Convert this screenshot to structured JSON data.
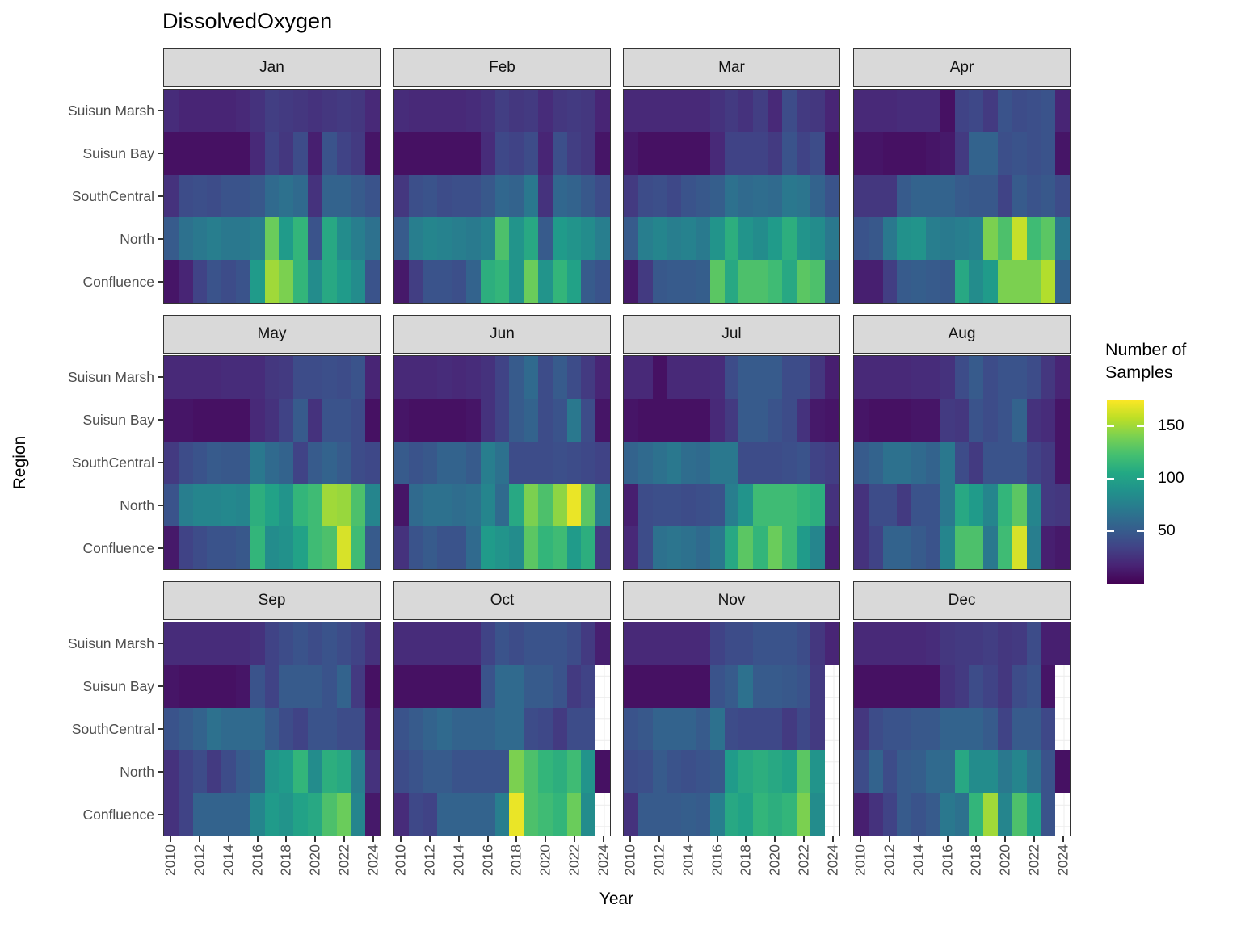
{
  "chart_data": {
    "type": "heatmap",
    "title": "DissolvedOxygen",
    "xlabel": "Year",
    "ylabel": "Region",
    "legend": {
      "title": "Number of Samples",
      "ticks": [
        150,
        100,
        50
      ]
    },
    "colormap": "viridis",
    "value_domain": [
      0,
      175
    ],
    "grid": true,
    "years": [
      2010,
      2011,
      2012,
      2013,
      2014,
      2015,
      2016,
      2017,
      2018,
      2019,
      2020,
      2021,
      2022,
      2023,
      2024
    ],
    "x_tick_labels": [
      "2010",
      "2012",
      "2014",
      "2016",
      "2018",
      "2020",
      "2022",
      "2024"
    ],
    "regions_top_to_bottom": [
      "Suisun Marsh",
      "Suisun Bay",
      "SouthCentral",
      "North",
      "Confluence"
    ],
    "facets": [
      {
        "month": "Jan",
        "values": [
          [
            22,
            18,
            18,
            18,
            18,
            20,
            25,
            32,
            30,
            28,
            25,
            28,
            30,
            28,
            20
          ],
          [
            8,
            8,
            8,
            8,
            8,
            8,
            20,
            35,
            28,
            40,
            15,
            45,
            35,
            30,
            10
          ],
          [
            25,
            40,
            42,
            40,
            45,
            45,
            48,
            60,
            65,
            60,
            25,
            55,
            55,
            50,
            45
          ],
          [
            50,
            65,
            70,
            75,
            70,
            70,
            75,
            135,
            95,
            115,
            45,
            105,
            85,
            75,
            65
          ],
          [
            10,
            18,
            35,
            45,
            40,
            45,
            95,
            150,
            140,
            115,
            85,
            105,
            95,
            85,
            45
          ]
        ]
      },
      {
        "month": "Feb",
        "values": [
          [
            22,
            20,
            20,
            20,
            20,
            22,
            25,
            32,
            28,
            30,
            22,
            28,
            30,
            28,
            18
          ],
          [
            8,
            8,
            8,
            8,
            8,
            8,
            22,
            38,
            35,
            40,
            18,
            42,
            32,
            28,
            10
          ],
          [
            28,
            42,
            45,
            40,
            42,
            42,
            48,
            58,
            55,
            70,
            25,
            58,
            55,
            48,
            40
          ],
          [
            50,
            75,
            80,
            78,
            75,
            72,
            78,
            125,
            90,
            105,
            50,
            95,
            90,
            85,
            75
          ],
          [
            12,
            32,
            45,
            45,
            42,
            55,
            110,
            115,
            90,
            135,
            90,
            115,
            100,
            50,
            45
          ]
        ]
      },
      {
        "month": "Mar",
        "values": [
          [
            20,
            20,
            20,
            20,
            20,
            20,
            25,
            30,
            25,
            32,
            20,
            40,
            30,
            28,
            18
          ],
          [
            12,
            8,
            8,
            8,
            8,
            8,
            20,
            35,
            35,
            35,
            30,
            45,
            35,
            40,
            10
          ],
          [
            30,
            40,
            42,
            38,
            45,
            48,
            52,
            65,
            60,
            62,
            60,
            70,
            68,
            55,
            45
          ],
          [
            50,
            75,
            80,
            75,
            78,
            72,
            90,
            110,
            90,
            85,
            95,
            110,
            90,
            85,
            70
          ],
          [
            12,
            30,
            48,
            50,
            50,
            52,
            130,
            105,
            125,
            125,
            120,
            105,
            130,
            125,
            55
          ]
        ]
      },
      {
        "month": "Apr",
        "values": [
          [
            20,
            20,
            20,
            22,
            22,
            22,
            8,
            35,
            38,
            30,
            45,
            40,
            42,
            45,
            18
          ],
          [
            10,
            10,
            8,
            8,
            8,
            10,
            12,
            30,
            55,
            55,
            42,
            45,
            42,
            45,
            10
          ],
          [
            28,
            28,
            28,
            50,
            55,
            55,
            55,
            50,
            48,
            48,
            35,
            50,
            45,
            48,
            40
          ],
          [
            45,
            48,
            70,
            88,
            90,
            75,
            72,
            75,
            78,
            140,
            125,
            160,
            120,
            130,
            70
          ],
          [
            15,
            15,
            32,
            50,
            52,
            50,
            48,
            105,
            85,
            95,
            140,
            140,
            140,
            155,
            55
          ]
        ]
      },
      {
        "month": "May",
        "values": [
          [
            20,
            20,
            20,
            20,
            22,
            22,
            22,
            28,
            30,
            40,
            40,
            42,
            40,
            45,
            18
          ],
          [
            10,
            10,
            8,
            8,
            8,
            8,
            20,
            25,
            35,
            50,
            25,
            45,
            45,
            40,
            8
          ],
          [
            30,
            40,
            45,
            50,
            48,
            48,
            70,
            60,
            55,
            35,
            50,
            55,
            50,
            40,
            38
          ],
          [
            45,
            75,
            80,
            80,
            82,
            80,
            110,
            100,
            90,
            115,
            120,
            150,
            148,
            125,
            80
          ],
          [
            12,
            35,
            40,
            45,
            45,
            48,
            115,
            85,
            88,
            100,
            120,
            125,
            165,
            120,
            50
          ]
        ]
      },
      {
        "month": "Jun",
        "values": [
          [
            20,
            20,
            20,
            22,
            20,
            22,
            25,
            35,
            50,
            60,
            40,
            50,
            40,
            30,
            18
          ],
          [
            10,
            8,
            8,
            8,
            8,
            10,
            25,
            35,
            50,
            55,
            40,
            45,
            70,
            40,
            10
          ],
          [
            50,
            45,
            48,
            55,
            55,
            50,
            75,
            65,
            40,
            40,
            40,
            42,
            40,
            38,
            35
          ],
          [
            10,
            60,
            65,
            65,
            62,
            65,
            80,
            60,
            105,
            140,
            125,
            145,
            170,
            130,
            75
          ],
          [
            25,
            45,
            50,
            45,
            45,
            60,
            95,
            90,
            85,
            130,
            115,
            120,
            95,
            110,
            30
          ]
        ]
      },
      {
        "month": "Jul",
        "values": [
          [
            20,
            20,
            8,
            20,
            20,
            20,
            22,
            40,
            50,
            50,
            50,
            40,
            40,
            28,
            15
          ],
          [
            10,
            8,
            8,
            8,
            8,
            8,
            20,
            30,
            50,
            50,
            45,
            40,
            25,
            12,
            10
          ],
          [
            55,
            60,
            65,
            70,
            62,
            60,
            70,
            70,
            40,
            40,
            40,
            42,
            45,
            35,
            32
          ],
          [
            15,
            40,
            42,
            42,
            40,
            42,
            45,
            75,
            90,
            120,
            120,
            120,
            115,
            110,
            25
          ],
          [
            20,
            40,
            65,
            68,
            65,
            60,
            70,
            105,
            130,
            115,
            135,
            120,
            95,
            80,
            15
          ]
        ]
      },
      {
        "month": "Aug",
        "values": [
          [
            20,
            20,
            20,
            20,
            22,
            22,
            25,
            40,
            50,
            40,
            45,
            45,
            40,
            28,
            18
          ],
          [
            10,
            8,
            8,
            8,
            10,
            10,
            30,
            28,
            45,
            40,
            45,
            55,
            25,
            22,
            10
          ],
          [
            50,
            55,
            65,
            65,
            60,
            55,
            70,
            40,
            30,
            45,
            45,
            45,
            35,
            30,
            10
          ],
          [
            25,
            40,
            40,
            30,
            45,
            45,
            70,
            105,
            95,
            80,
            115,
            130,
            80,
            30,
            28
          ],
          [
            25,
            35,
            55,
            55,
            50,
            45,
            80,
            125,
            125,
            70,
            120,
            165,
            75,
            15,
            12
          ]
        ]
      },
      {
        "month": "Sep",
        "values": [
          [
            22,
            22,
            22,
            22,
            22,
            22,
            25,
            35,
            40,
            45,
            40,
            45,
            40,
            35,
            25
          ],
          [
            10,
            8,
            8,
            8,
            8,
            10,
            45,
            35,
            50,
            50,
            50,
            45,
            55,
            30,
            8
          ],
          [
            45,
            50,
            55,
            65,
            60,
            60,
            60,
            50,
            40,
            35,
            45,
            45,
            40,
            40,
            15
          ],
          [
            25,
            35,
            40,
            30,
            40,
            50,
            55,
            90,
            95,
            115,
            85,
            110,
            105,
            75,
            25
          ],
          [
            25,
            35,
            55,
            55,
            55,
            55,
            80,
            95,
            90,
            100,
            105,
            125,
            135,
            80,
            12
          ]
        ]
      },
      {
        "month": "Oct",
        "values": [
          [
            22,
            22,
            22,
            22,
            22,
            22,
            35,
            45,
            40,
            45,
            45,
            45,
            40,
            30,
            15
          ],
          [
            8,
            8,
            8,
            8,
            8,
            8,
            45,
            60,
            60,
            50,
            50,
            45,
            30,
            35,
            null
          ],
          [
            45,
            50,
            55,
            60,
            55,
            55,
            55,
            60,
            60,
            40,
            38,
            30,
            40,
            40,
            null
          ],
          [
            40,
            45,
            50,
            50,
            45,
            45,
            45,
            45,
            140,
            125,
            115,
            110,
            120,
            90,
            8
          ],
          [
            22,
            38,
            35,
            55,
            55,
            55,
            55,
            75,
            170,
            125,
            120,
            115,
            135,
            85,
            null
          ]
        ]
      },
      {
        "month": "Nov",
        "values": [
          [
            20,
            20,
            20,
            20,
            20,
            20,
            35,
            40,
            40,
            45,
            45,
            45,
            40,
            28,
            18
          ],
          [
            8,
            8,
            8,
            8,
            8,
            8,
            45,
            50,
            65,
            50,
            50,
            48,
            45,
            30,
            null
          ],
          [
            45,
            48,
            55,
            55,
            55,
            50,
            65,
            40,
            38,
            38,
            38,
            30,
            38,
            30,
            null
          ],
          [
            40,
            42,
            50,
            45,
            42,
            45,
            48,
            95,
            105,
            110,
            105,
            100,
            130,
            90,
            null
          ],
          [
            25,
            50,
            50,
            50,
            52,
            50,
            75,
            105,
            100,
            115,
            110,
            115,
            140,
            85,
            null
          ]
        ]
      },
      {
        "month": "Dec",
        "values": [
          [
            20,
            20,
            20,
            20,
            20,
            22,
            28,
            30,
            30,
            32,
            28,
            30,
            40,
            15,
            15
          ],
          [
            8,
            8,
            8,
            8,
            8,
            8,
            25,
            30,
            40,
            35,
            28,
            40,
            45,
            10,
            null
          ],
          [
            28,
            40,
            45,
            45,
            48,
            48,
            55,
            55,
            55,
            50,
            35,
            50,
            50,
            38,
            null
          ],
          [
            40,
            55,
            40,
            50,
            52,
            60,
            60,
            105,
            85,
            85,
            70,
            80,
            65,
            45,
            8
          ],
          [
            15,
            25,
            35,
            50,
            45,
            50,
            70,
            65,
            115,
            150,
            80,
            125,
            100,
            45,
            null
          ]
        ]
      }
    ]
  }
}
